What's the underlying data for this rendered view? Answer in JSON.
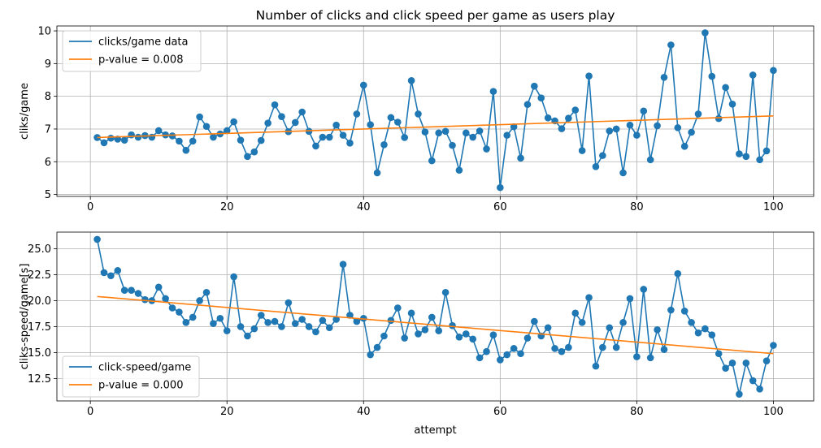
{
  "chart_data": [
    {
      "type": "line",
      "title": "Number of clicks and click speed per game as users play",
      "xlabel": "",
      "ylabel": "cliks/game",
      "xlim": [
        -4.9,
        105.9
      ],
      "ylim": [
        4.94,
        10.15
      ],
      "xticks": [
        0,
        20,
        40,
        60,
        80,
        100
      ],
      "yticks": [
        5,
        6,
        7,
        8,
        9,
        10
      ],
      "grid": true,
      "legend_position": "upper-left",
      "series": [
        {
          "name": "clicks/game data",
          "color": "#1f77b4",
          "markers": true,
          "x": [
            1,
            2,
            3,
            4,
            5,
            6,
            7,
            8,
            9,
            10,
            11,
            12,
            13,
            14,
            15,
            16,
            17,
            18,
            19,
            20,
            21,
            22,
            23,
            24,
            25,
            26,
            27,
            28,
            29,
            30,
            31,
            32,
            33,
            34,
            35,
            36,
            37,
            38,
            39,
            40,
            41,
            42,
            43,
            44,
            45,
            46,
            47,
            48,
            49,
            50,
            51,
            52,
            53,
            54,
            55,
            56,
            57,
            58,
            59,
            60,
            61,
            62,
            63,
            64,
            65,
            66,
            67,
            68,
            69,
            70,
            71,
            72,
            73,
            74,
            75,
            76,
            77,
            78,
            79,
            80,
            81,
            82,
            83,
            84,
            85,
            86,
            87,
            88,
            89,
            90,
            91,
            92,
            93,
            94,
            95,
            96,
            97,
            98,
            99,
            100
          ],
          "y": [
            6.74,
            6.58,
            6.72,
            6.69,
            6.66,
            6.82,
            6.75,
            6.8,
            6.75,
            6.95,
            6.82,
            6.79,
            6.63,
            6.35,
            6.63,
            7.37,
            7.08,
            6.75,
            6.85,
            6.95,
            7.22,
            6.66,
            6.16,
            6.3,
            6.65,
            7.18,
            7.74,
            7.38,
            6.92,
            7.2,
            7.52,
            6.93,
            6.48,
            6.75,
            6.75,
            7.12,
            6.81,
            6.57,
            7.46,
            8.34,
            7.13,
            5.66,
            6.52,
            7.35,
            7.21,
            6.74,
            8.48,
            7.46,
            6.91,
            6.03,
            6.88,
            6.93,
            6.5,
            5.74,
            6.88,
            6.75,
            6.94,
            6.39,
            8.15,
            5.21,
            6.81,
            7.07,
            6.11,
            7.75,
            8.31,
            7.95,
            7.34,
            7.25,
            7.01,
            7.33,
            7.58,
            6.34,
            8.62,
            5.85,
            6.19,
            6.94,
            7.0,
            5.66,
            7.12,
            6.81,
            7.55,
            6.06,
            7.1,
            8.58,
            9.57,
            7.04,
            6.47,
            6.9,
            7.46,
            9.94,
            8.61,
            7.32,
            8.27,
            7.76,
            6.24,
            6.16,
            8.65,
            6.06,
            6.33,
            8.79
          ]
        },
        {
          "name": "p-value = 0.008",
          "color": "#ff7f0e",
          "markers": false,
          "x": [
            1,
            100
          ],
          "y": [
            6.74,
            7.4
          ]
        }
      ]
    },
    {
      "type": "line",
      "title": "",
      "xlabel": "attempt",
      "ylabel": "cliks-speed/game[s]",
      "xlim": [
        -4.9,
        105.9
      ],
      "ylim": [
        10.35,
        26.6
      ],
      "xticks": [
        0,
        20,
        40,
        60,
        80,
        100
      ],
      "yticks": [
        12.5,
        15.0,
        17.5,
        20.0,
        22.5,
        25.0
      ],
      "ytick_labels": [
        "12.5",
        "15.0",
        "17.5",
        "20.0",
        "22.5",
        "25.0"
      ],
      "grid": true,
      "legend_position": "lower-left",
      "series": [
        {
          "name": "click-speed/game",
          "color": "#1f77b4",
          "markers": true,
          "x": [
            1,
            2,
            3,
            4,
            5,
            6,
            7,
            8,
            9,
            10,
            11,
            12,
            13,
            14,
            15,
            16,
            17,
            18,
            19,
            20,
            21,
            22,
            23,
            24,
            25,
            26,
            27,
            28,
            29,
            30,
            31,
            32,
            33,
            34,
            35,
            36,
            37,
            38,
            39,
            40,
            41,
            42,
            43,
            44,
            45,
            46,
            47,
            48,
            49,
            50,
            51,
            52,
            53,
            54,
            55,
            56,
            57,
            58,
            59,
            60,
            61,
            62,
            63,
            64,
            65,
            66,
            67,
            68,
            69,
            70,
            71,
            72,
            73,
            74,
            75,
            76,
            77,
            78,
            79,
            80,
            81,
            82,
            83,
            84,
            85,
            86,
            87,
            88,
            89,
            90,
            91,
            92,
            93,
            94,
            95,
            96,
            97,
            98,
            99,
            100
          ],
          "y": [
            25.9,
            22.7,
            22.4,
            22.9,
            21.0,
            21.0,
            20.7,
            20.1,
            20.0,
            21.3,
            20.2,
            19.3,
            18.9,
            17.9,
            18.4,
            20.0,
            20.8,
            17.8,
            18.3,
            17.1,
            22.3,
            17.5,
            16.6,
            17.3,
            18.6,
            17.9,
            18.0,
            17.5,
            19.8,
            17.8,
            18.2,
            17.5,
            17.0,
            18.1,
            17.4,
            18.2,
            23.5,
            18.6,
            18.0,
            18.3,
            14.8,
            15.5,
            16.6,
            18.1,
            19.3,
            16.4,
            18.8,
            16.8,
            17.2,
            18.4,
            17.1,
            20.8,
            17.6,
            16.5,
            16.8,
            16.3,
            14.5,
            15.1,
            16.7,
            14.3,
            14.8,
            15.4,
            14.9,
            16.4,
            18.0,
            16.6,
            17.4,
            15.4,
            15.1,
            15.5,
            18.8,
            17.9,
            20.3,
            13.7,
            15.5,
            17.4,
            15.5,
            17.9,
            20.2,
            14.6,
            21.1,
            14.5,
            17.2,
            15.3,
            19.1,
            22.6,
            19.0,
            17.9,
            16.9,
            17.3,
            16.7,
            14.9,
            13.5,
            14.0,
            11.0,
            14.0,
            12.3,
            11.5,
            14.2,
            15.7
          ]
        },
        {
          "name": "p-value = 0.000",
          "color": "#ff7f0e",
          "markers": false,
          "x": [
            1,
            100
          ],
          "y": [
            20.4,
            14.9
          ]
        }
      ]
    }
  ]
}
